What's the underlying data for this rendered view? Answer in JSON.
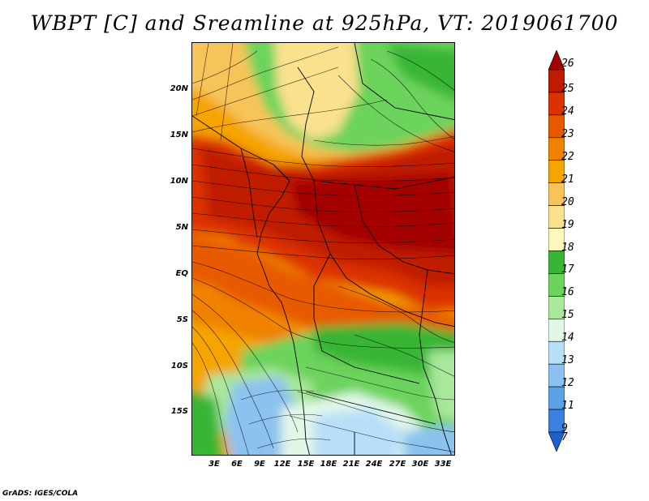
{
  "title": "WBPT [C] and Sreamline at 925hPa, VT: 2019061700",
  "credit": "GrADS: IGES/COLA",
  "map": {
    "region": "West/Central Africa",
    "lat_ticks": [
      "20N",
      "15N",
      "10N",
      "5N",
      "EQ",
      "5S",
      "10S",
      "15S"
    ],
    "lat_values": [
      20,
      15,
      10,
      5,
      0,
      -5,
      -10,
      -15
    ],
    "lat_range": [
      -20,
      25
    ],
    "lon_ticks": [
      "3E",
      "6E",
      "9E",
      "12E",
      "15E",
      "18E",
      "21E",
      "24E",
      "27E",
      "30E",
      "33E"
    ],
    "lon_values": [
      3,
      6,
      9,
      12,
      15,
      18,
      21,
      24,
      27,
      30,
      33
    ],
    "lon_range": [
      0,
      34.5
    ]
  },
  "colorbar": {
    "labels": [
      "26",
      "25",
      "24",
      "23",
      "22",
      "21",
      "20",
      "19",
      "18",
      "17",
      "16",
      "15",
      "14",
      "13",
      "12",
      "11",
      "9",
      "7"
    ],
    "colors": [
      "#a50000",
      "#c01a00",
      "#dc3200",
      "#e85a00",
      "#f08200",
      "#f5a400",
      "#f7c45a",
      "#fae18e",
      "#fdf6bd",
      "#38b536",
      "#6cd35b",
      "#a9e79b",
      "#e2f7e8",
      "#b8dff8",
      "#8cc2ef",
      "#5aa2e5",
      "#3b82e0",
      "#1e5fd0"
    ]
  }
}
